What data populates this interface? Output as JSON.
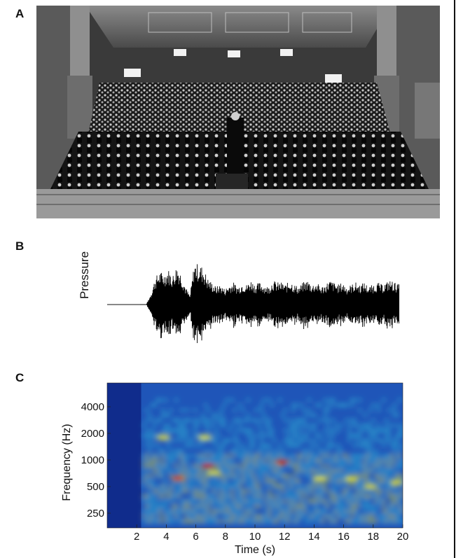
{
  "figure": {
    "panels": [
      "A",
      "B",
      "C"
    ],
    "photo_subject": "black-and-white photograph of an orchestra and choir on a concert stage",
    "waveform_ylabel": "Pressure"
  },
  "chart_data": [
    {
      "type": "line",
      "name": "waveform",
      "ylabel": "Pressure",
      "x_range_s": [
        0,
        20
      ],
      "envelope_amplitude": [
        0,
        0,
        0,
        0,
        0,
        0,
        0,
        0,
        0,
        0,
        0.25,
        0.6,
        0.75,
        0.7,
        0.8,
        0.65,
        0.9,
        0.7,
        0.4,
        0.2,
        0.95,
        0.9,
        0.85,
        0.6,
        0.5,
        0.4,
        0.45,
        0.35,
        0.45,
        0.5,
        0.4,
        0.5,
        0.45,
        0.55,
        0.45,
        0.5,
        0.45,
        0.4,
        0.55,
        0.5,
        0.5,
        0.45,
        0.55,
        0.45,
        0.4,
        0.5,
        0.55,
        0.45,
        0.5,
        0.4,
        0.45,
        0.55,
        0.5,
        0.45,
        0.5,
        0.4,
        0.45,
        0.5,
        0.45,
        0.5,
        0.4,
        0.45,
        0.5,
        0.45,
        0.5,
        0.55,
        0.5,
        0.45
      ]
    },
    {
      "type": "heatmap",
      "name": "spectrogram",
      "xlabel": "Time (s)",
      "ylabel": "Frequency (Hz)",
      "xlim": [
        0,
        20
      ],
      "x_ticks": [
        "2",
        "4",
        "6",
        "8",
        "10",
        "12",
        "14",
        "16",
        "18",
        "20"
      ],
      "y_ticks": [
        "250",
        "500",
        "1000",
        "2000",
        "4000"
      ],
      "y_scale": "log",
      "colormap": "jet",
      "colors": {
        "low": "#1f3a9a",
        "mid": "#33c8dc",
        "high": "#e8e030",
        "peak": "#d41a10"
      }
    }
  ]
}
